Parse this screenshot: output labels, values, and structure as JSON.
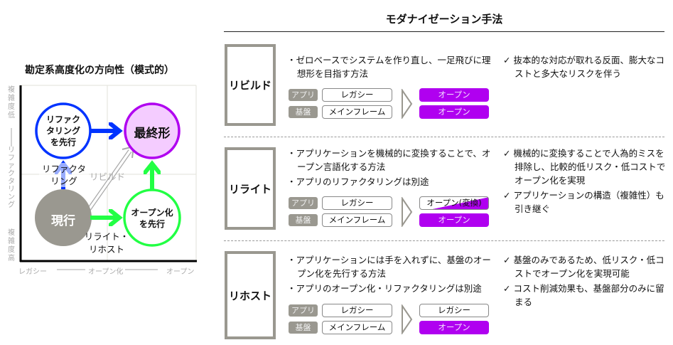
{
  "chart": {
    "title": "勘定系高度化の方向性（模式的）",
    "y_top": "複雑度低",
    "y_mid": "リファクタリング",
    "y_bottom": "複雑度高",
    "x_left": "レガシー",
    "x_mid": "オープン化",
    "x_right": "オープン",
    "nodes": {
      "refactor_first": "リファクタリングを先行",
      "final": "最終形",
      "current": "現行",
      "open_first": "オープン化を先行"
    },
    "arrows": {
      "refactoring": "リファクタリング",
      "rebuild": "リビルド",
      "rewrite_rehost": "リライト・リホスト"
    },
    "colors": {
      "blue": "#0033ff",
      "green": "#22ff44",
      "purple": "#b000f0",
      "gray": "#9a9890",
      "final_fill": "#f4ccff"
    }
  },
  "title": "モダナイゼーション手法",
  "methods": [
    {
      "name": "リビルド",
      "bullets": [
        "ゼロベースでシステムを作り直し、一足飛びに理想形を目指す方法"
      ],
      "checks": [
        "抜本的な対応が取れる反面、膨大なコストと多大なリスクを伴う"
      ],
      "app_tag": "アプリ",
      "base_tag": "基盤",
      "app_from": "レガシー",
      "base_from": "メインフレーム",
      "app_to": "オープン",
      "base_to": "オープン"
    },
    {
      "name": "リライト",
      "bullets": [
        "アプリケーションを機械的に変換することで、オープン言語化する方法",
        "アプリのリファクタリングは別途"
      ],
      "checks": [
        "機械的に変換することで人為的ミスを排除し、比較的低リスク・低コストでオープン化を実現",
        "アプリケーションの構造（複雑性）も引き継ぐ"
      ],
      "app_tag": "アプリ",
      "base_tag": "基盤",
      "app_from": "レガシー",
      "base_from": "メインフレーム",
      "app_to": "オープン(変換)",
      "base_to": "オープン"
    },
    {
      "name": "リホスト",
      "bullets": [
        "アプリケーションには手を入れずに、基盤のオープン化を先行する方法",
        "アプリのオープン化・リファクタリングは別途"
      ],
      "checks": [
        "基盤のみであるため、低リスク・低コストでオープン化を実現可能",
        "コスト削減効果も、基盤部分のみに留まる"
      ],
      "app_tag": "アプリ",
      "base_tag": "基盤",
      "app_from": "レガシー",
      "base_from": "メインフレーム",
      "app_to": "レガシー",
      "base_to": "オープン"
    }
  ]
}
